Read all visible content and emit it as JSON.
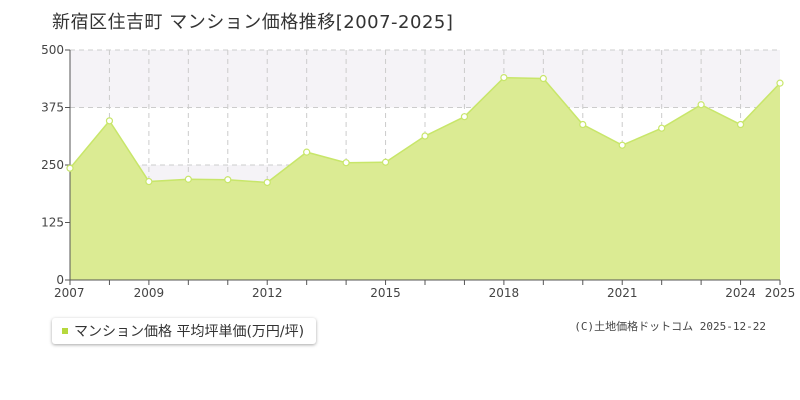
{
  "title": "新宿区住吉町 マンション価格推移[2007-2025]",
  "legend": {
    "label": "マンション価格 平均坪単価(万円/坪)"
  },
  "credit": "(C)土地価格ドットコム 2025-12-22",
  "colors": {
    "line": "#c8e66a",
    "fill": "#dbeb93",
    "point_fill": "#ffffff",
    "swatch": "#b6d83d"
  },
  "chart_data": {
    "type": "area",
    "title": "",
    "xlabel": "",
    "ylabel": "",
    "xlim": [
      2007,
      2025
    ],
    "ylim": [
      0,
      500
    ],
    "yticks": [
      0,
      125,
      250,
      375,
      500
    ],
    "xticks": [
      2007,
      2009,
      2012,
      2015,
      2018,
      2021,
      2024,
      2025
    ],
    "grid": true,
    "series": [
      {
        "name": "マンション価格 平均坪単価(万円/坪)",
        "x": [
          2007,
          2008,
          2009,
          2010,
          2011,
          2012,
          2013,
          2014,
          2015,
          2016,
          2017,
          2018,
          2019,
          2020,
          2021,
          2022,
          2023,
          2024,
          2025
        ],
        "y": [
          243,
          346,
          214,
          219,
          218,
          212,
          278,
          255,
          256,
          313,
          355,
          440,
          438,
          338,
          293,
          330,
          381,
          338,
          428
        ]
      }
    ]
  }
}
